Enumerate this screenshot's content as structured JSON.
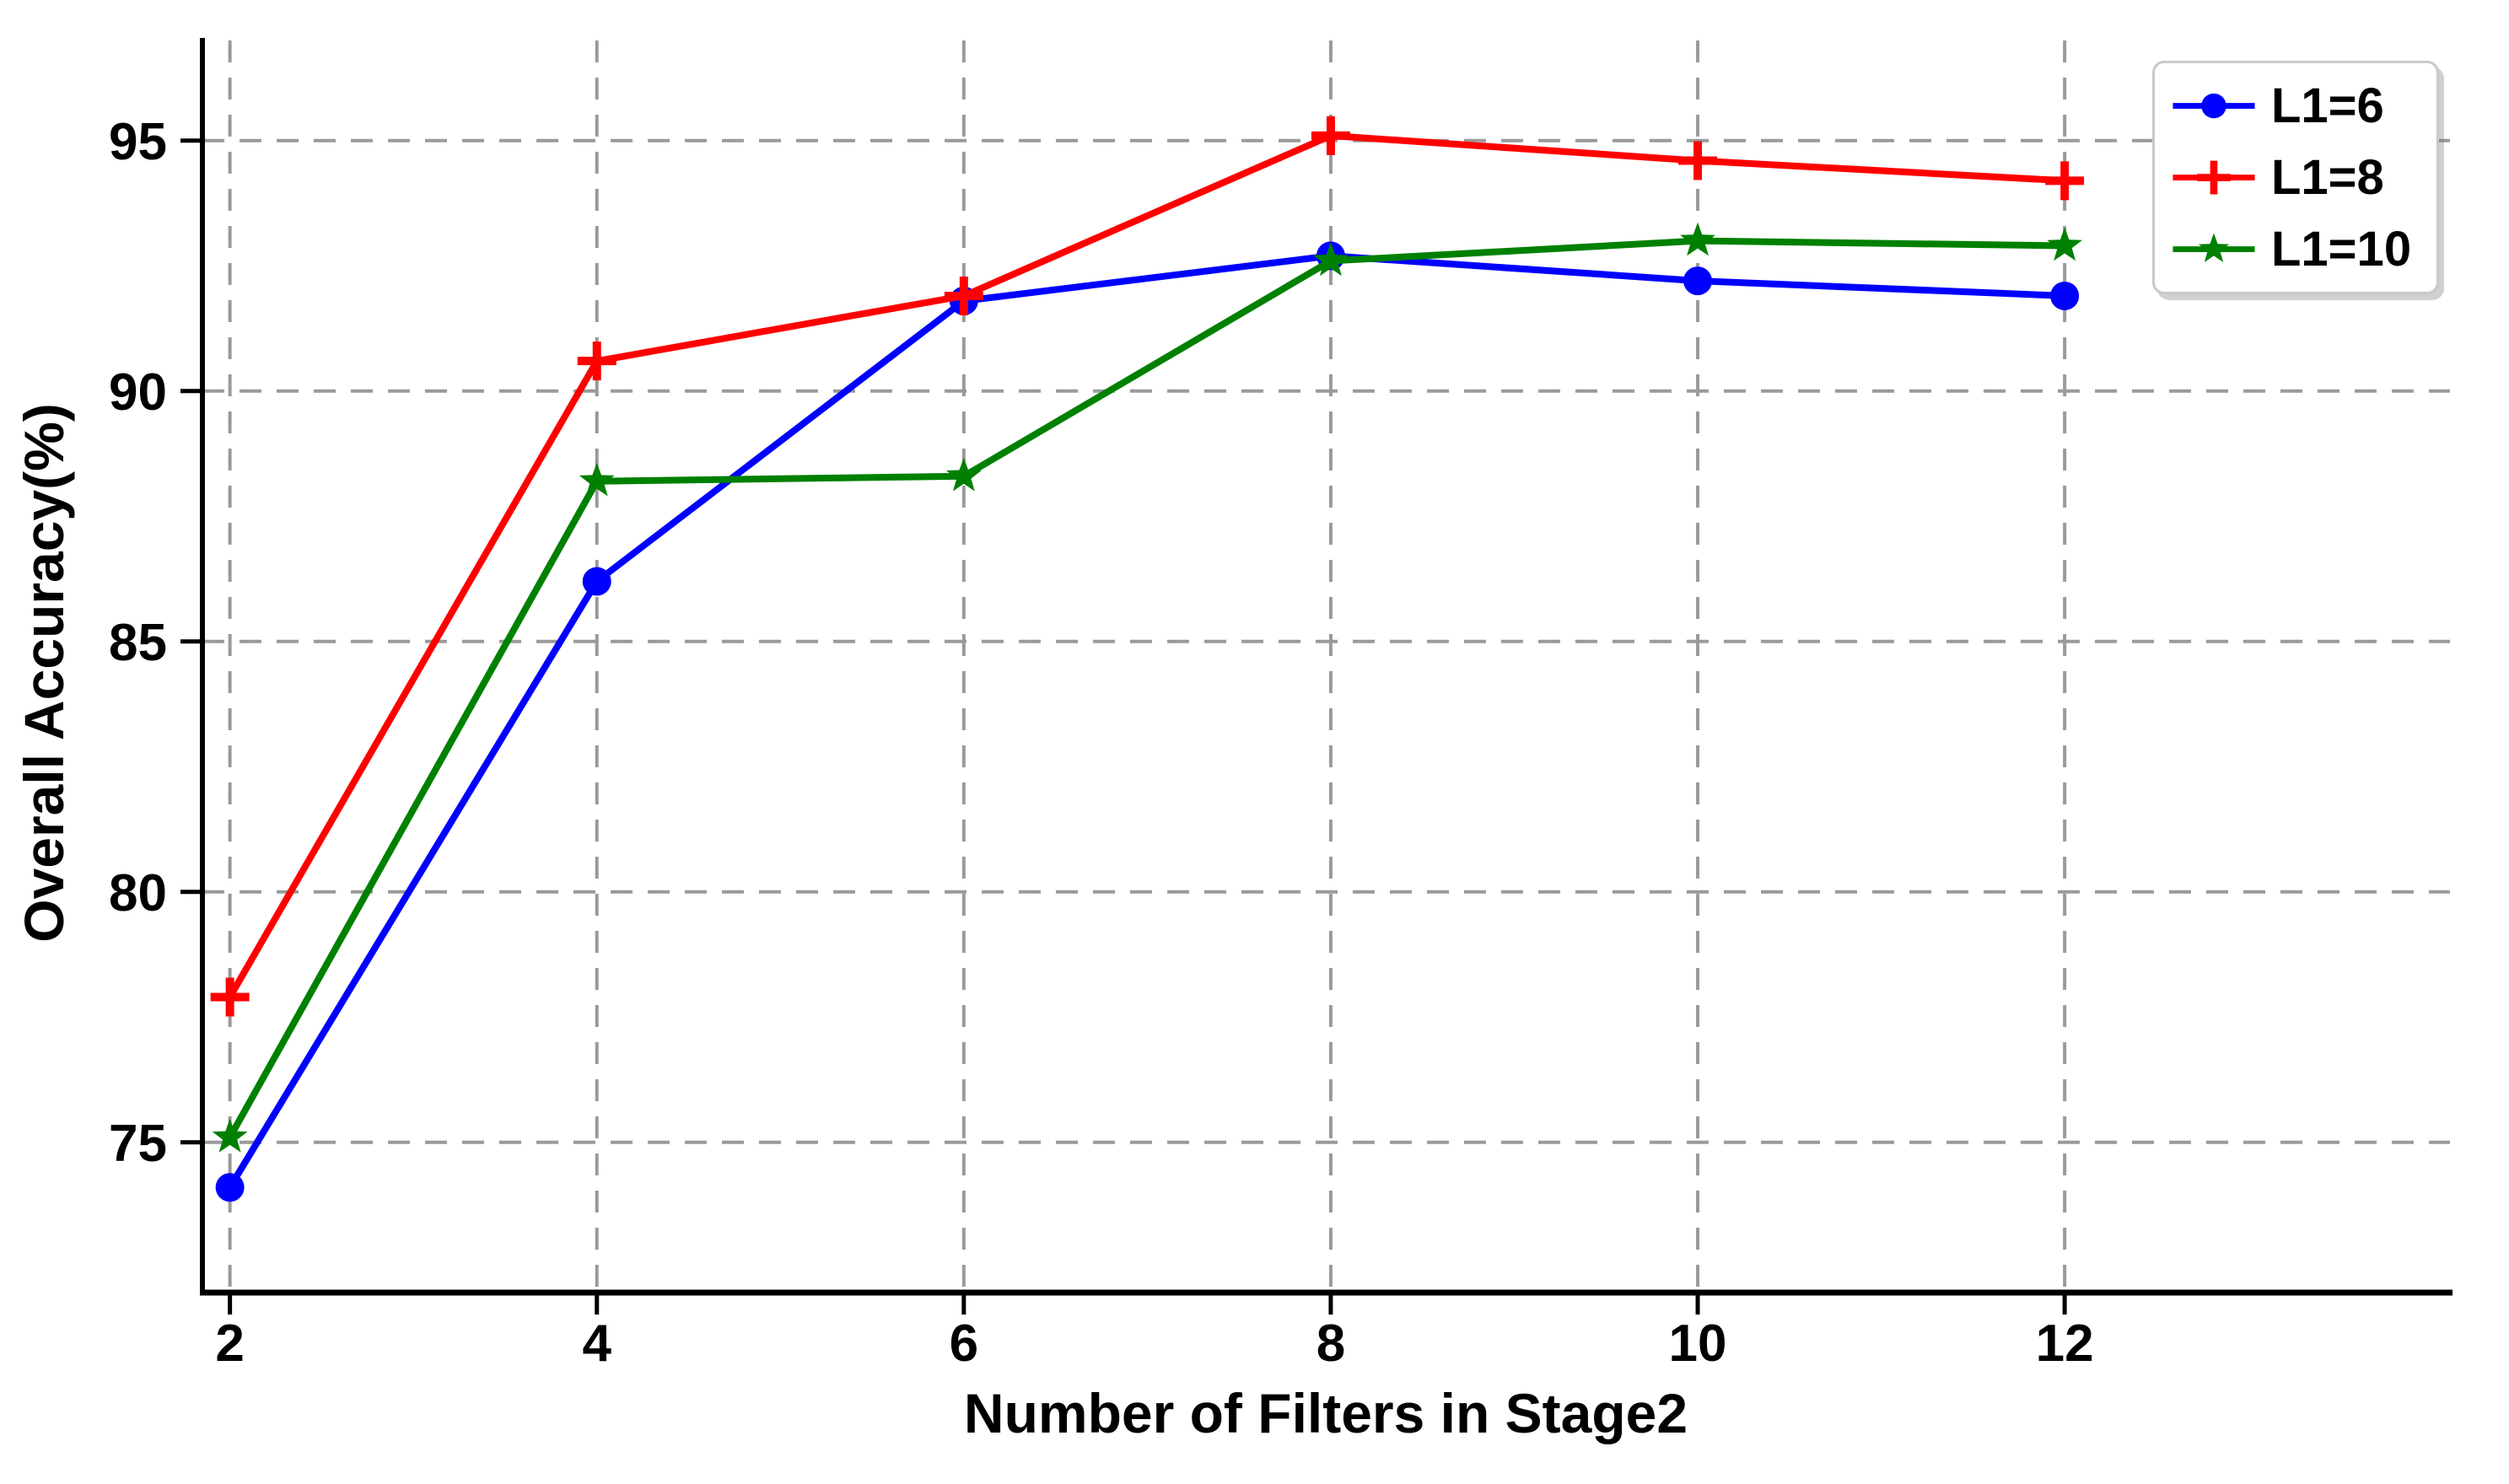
{
  "figure": {
    "background_color": "#ffffff",
    "grid_color": "#9a9a9a",
    "axis_color": "#000000",
    "legend_border_color": "#c9c9c9"
  },
  "chart_data": {
    "type": "line",
    "title": "",
    "xlabel": "Number of Filters in Stage2",
    "ylabel": "Overall Accuracy(%)",
    "x": [
      2,
      4,
      6,
      8,
      10,
      12
    ],
    "xtick_labels": [
      "2",
      "4",
      "6",
      "8",
      "10",
      "12"
    ],
    "yticks": [
      75,
      80,
      85,
      90,
      95
    ],
    "ytick_labels": [
      "75",
      "80",
      "85",
      "90",
      "95"
    ],
    "xlim": [
      1.85,
      14.1
    ],
    "ylim": [
      72,
      97
    ],
    "grid": "dashed",
    "legend_position": "top-right",
    "series": [
      {
        "name": "L1=6",
        "color": "#0000ff",
        "marker": "circle-marker-icon",
        "values": [
          74.1,
          86.2,
          91.8,
          92.7,
          92.2,
          91.9
        ]
      },
      {
        "name": "L1=8",
        "color": "#ff0000",
        "marker": "plus-marker-icon",
        "values": [
          77.9,
          90.6,
          91.9,
          95.1,
          94.6,
          94.2
        ]
      },
      {
        "name": "L1=10",
        "color": "#008000",
        "marker": "star-marker-icon",
        "values": [
          75.1,
          88.2,
          88.3,
          92.6,
          93.0,
          92.9
        ]
      }
    ]
  }
}
